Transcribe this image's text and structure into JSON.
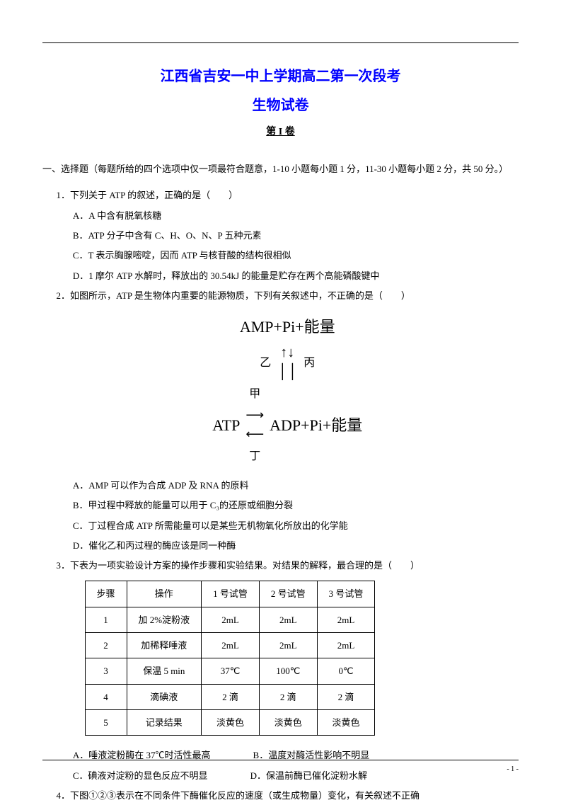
{
  "styles": {
    "title_color": "#0000ff",
    "text_color": "#000000",
    "border_color": "#000000",
    "background_color": "#ffffff",
    "title_fontsize": 20,
    "body_fontsize": 13,
    "part_fontsize": 14,
    "diagram_fontsize": 22
  },
  "header": {
    "title_main": "江西省吉安一中上学期高二第一次段考",
    "title_sub": "生物试卷",
    "title_part": "第 I 卷"
  },
  "section_intro": "一、选择题（每题所给的四个选项中仅一项最符合题意，1-10 小题每小题 1 分，11-30 小题每小题 2 分，共 50 分。）",
  "q1": {
    "stem": "1．下列关于 ATP 的叙述，正确的是（　　）",
    "A": "A．A 中含有脱氧核糖",
    "B": "B．ATP 分子中含有 C、H、O、N、P 五种元素",
    "C": "C．T 表示胸腺嘧啶，因而 ATP 与核苷酸的结构很相似",
    "D": "D．1 摩尔 ATP 水解时，释放出的 30.54kJ 的能量是贮存在两个高能磷酸键中"
  },
  "q2": {
    "stem": "2．如图所示，ATP 是生物体内重要的能源物质，下列有关叙述中，不正确的是（　　）",
    "diagram": {
      "top": "AMP+Pi+能量",
      "left_label": "乙",
      "right_label": "丙",
      "bottom_left": "ATP",
      "top_label": "甲",
      "bottom_label": "丁",
      "bottom_right": "ADP+Pi+能量"
    },
    "A": "A．AMP 可以作为合成 ADP 及 RNA 的原料",
    "B": "B．甲过程中释放的能量可以用于 C₃的还原或细胞分裂",
    "C": "C．丁过程合成 ATP 所需能量可以是某些无机物氧化所放出的化学能",
    "D": "D．催化乙和丙过程的酶应该是同一种酶"
  },
  "q3": {
    "stem": "3．下表为一项实验设计方案的操作步骤和实验结果。对结果的解释，最合理的是（　　）",
    "table": {
      "type": "table",
      "columns": [
        "步骤",
        "操作",
        "1 号试管",
        "2 号试管",
        "3 号试管"
      ],
      "rows": [
        [
          "1",
          "加 2%淀粉液",
          "2mL",
          "2mL",
          "2mL"
        ],
        [
          "2",
          "加稀释唾液",
          "2mL",
          "2mL",
          "2mL"
        ],
        [
          "3",
          "保温 5 min",
          "37℃",
          "100℃",
          "0℃"
        ],
        [
          "4",
          "滴碘液",
          "2 滴",
          "2 滴",
          "2 滴"
        ],
        [
          "5",
          "记录结果",
          "淡黄色",
          "淡黄色",
          "淡黄色"
        ]
      ],
      "border_color": "#000000",
      "cell_padding": "4px 16px",
      "text_align": "center"
    },
    "A": "A．唾液淀粉酶在 37℃时活性最高",
    "B": "B．温度对酶活性影响不明显",
    "C": "C．碘液对淀粉的显色反应不明显",
    "D": "D．保温前酶已催化淀粉水解"
  },
  "q4": {
    "stem": "4．下图①②③表示在不同条件下酶催化反应的速度（或生成物量）变化，有关叙述不正确"
  },
  "page_num": "- 1 -"
}
